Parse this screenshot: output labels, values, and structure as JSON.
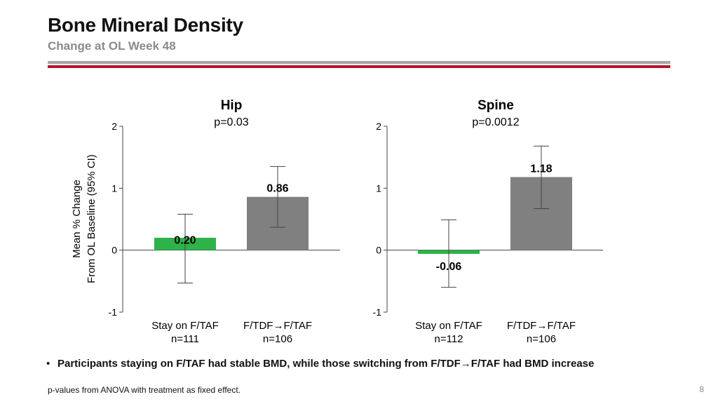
{
  "header": {
    "title": "Bone Mineral Density",
    "subtitle": "Change at OL Week 48"
  },
  "chart_data": [
    {
      "type": "bar",
      "title": "Hip",
      "subtitle": "p=0.03",
      "ylabel": "Mean % Change From OL Baseline (95% CI)",
      "ylabel_lines": [
        "Mean % Change",
        "From OL Baseline (95% CI)"
      ],
      "ylim": [
        -1,
        2
      ],
      "yticks": [
        "2",
        "1",
        "0",
        "-1"
      ],
      "categories": [
        "Stay on F/TAF",
        "F/TDF→F/TAF"
      ],
      "n_labels": [
        "n=111",
        "n=106"
      ],
      "values": [
        0.2,
        0.86
      ],
      "value_labels": [
        "0.20",
        "0.86"
      ],
      "ci_low": [
        -0.53,
        0.37
      ],
      "ci_high": [
        0.58,
        1.35
      ],
      "colors": [
        "#2db34a",
        "#808080"
      ],
      "grid": false
    },
    {
      "type": "bar",
      "title": "Spine",
      "subtitle": "p=0.0012",
      "ylim": [
        -1,
        2
      ],
      "yticks": [
        "2",
        "1",
        "0",
        "-1"
      ],
      "categories": [
        "Stay on F/TAF",
        "F/TDF→F/TAF"
      ],
      "n_labels": [
        "n=112",
        "n=106"
      ],
      "values": [
        -0.06,
        1.18
      ],
      "value_labels": [
        "-0.06",
        "1.18"
      ],
      "ci_low": [
        -0.6,
        0.67
      ],
      "ci_high": [
        0.49,
        1.68
      ],
      "colors": [
        "#2db34a",
        "#808080"
      ],
      "grid": false
    }
  ],
  "bullet": {
    "symbol": "•",
    "text_before": "Participants staying on F/TAF had stable BMD, while those switching from F/TDF",
    "arrow": "→",
    "text_after": "F/TAF had BMD increase"
  },
  "footnote": "p-values from ANOVA with treatment as fixed effect.",
  "page_number": "8"
}
